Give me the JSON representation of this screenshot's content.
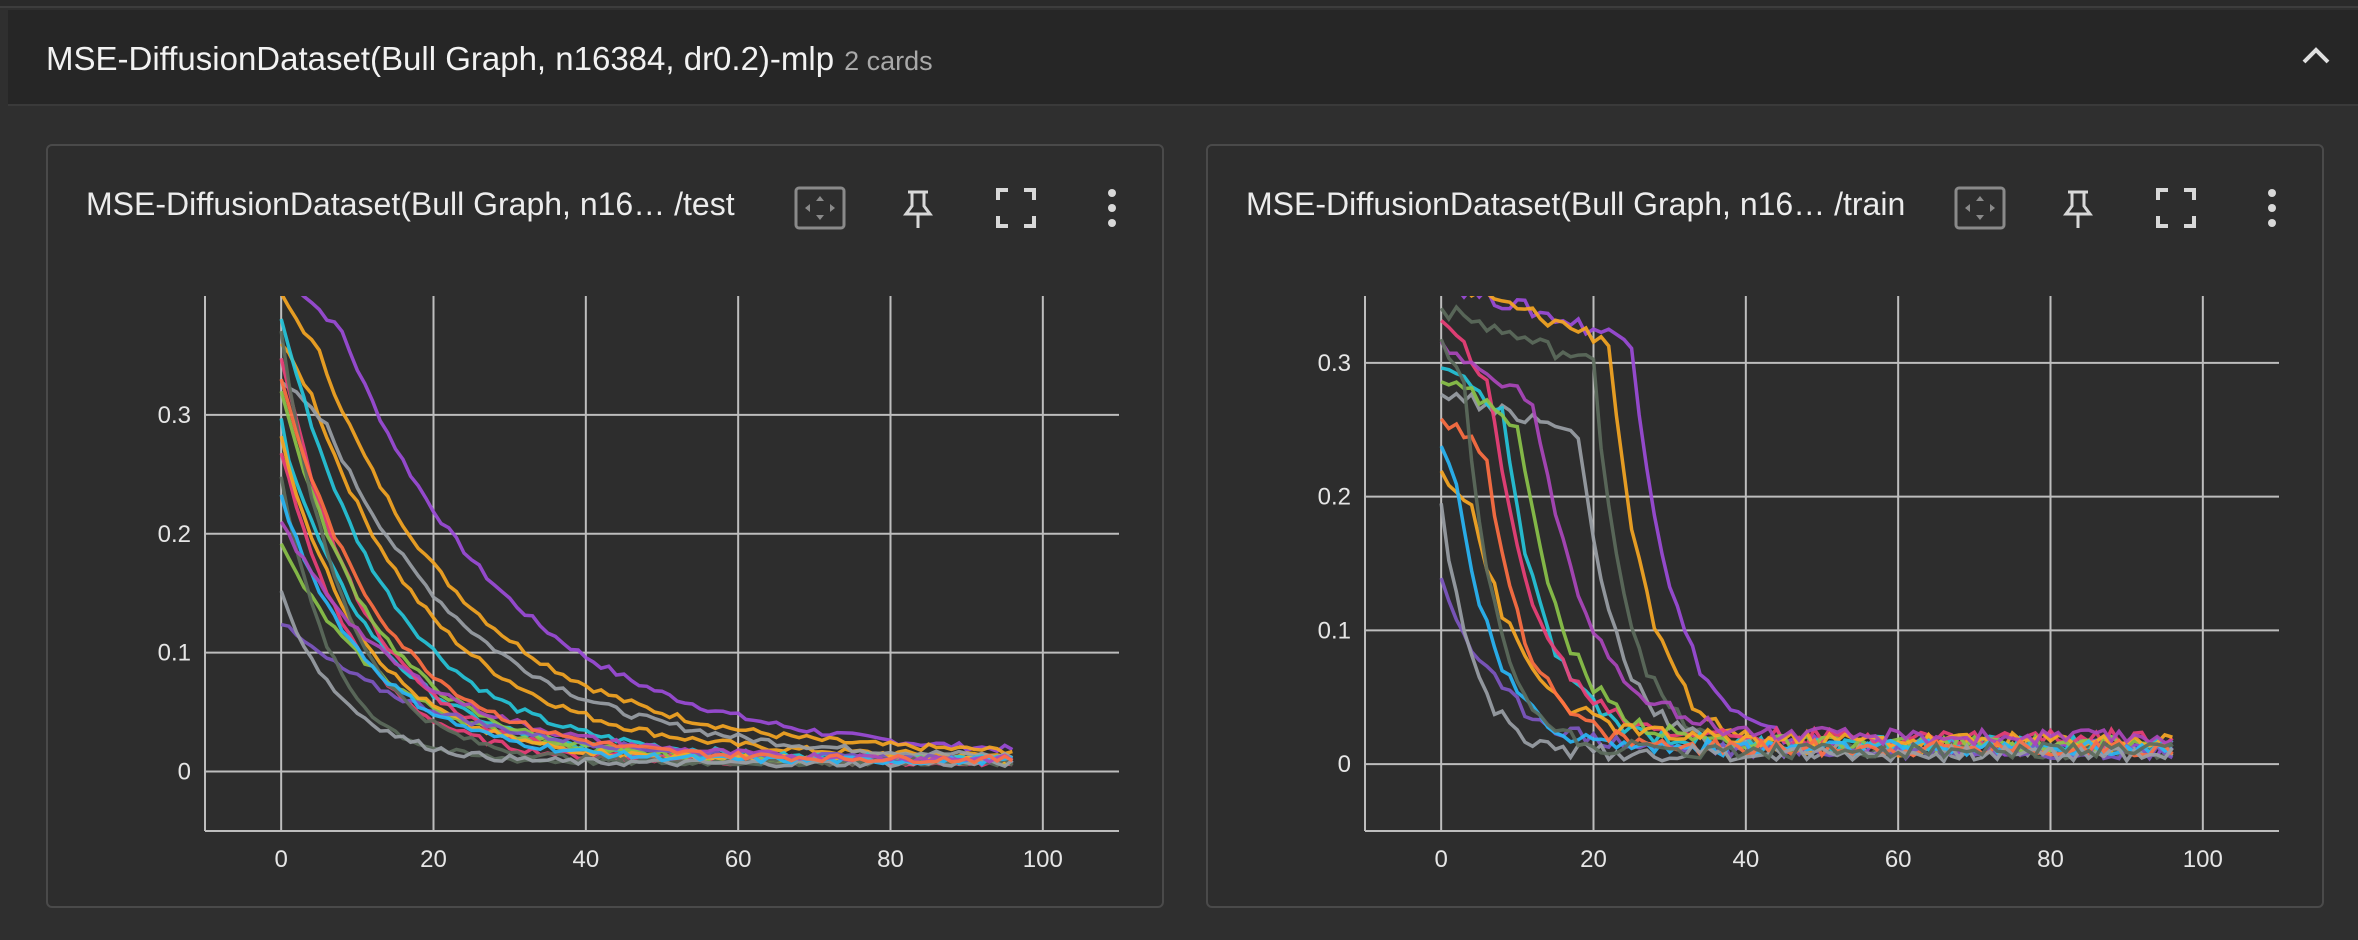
{
  "group": {
    "title": "MSE-DiffusionDataset(Bull Graph, n16384, dr0.2)-mlp",
    "count": "2 cards"
  },
  "cards": [
    {
      "title": "MSE-DiffusionDataset(Bull Graph, n16…  /test",
      "icons": [
        "fit-domain-icon",
        "pin-icon",
        "fullscreen-icon",
        "more-vert-icon"
      ]
    },
    {
      "title": "MSE-DiffusionDataset(Bull Graph, n16… /train",
      "icons": [
        "fit-domain-icon",
        "pin-icon",
        "fullscreen-icon",
        "more-vert-icon"
      ]
    }
  ],
  "chart_data": [
    {
      "type": "line",
      "split": "test",
      "xlim": [
        -10,
        110
      ],
      "ylim": [
        -0.05,
        0.4
      ],
      "xticks": [
        0,
        20,
        40,
        60,
        80,
        100
      ],
      "yticks": [
        0,
        0.1,
        0.2,
        0.3
      ],
      "xtick_labels": [
        "0",
        "20",
        "40",
        "60",
        "80",
        "100"
      ],
      "ytick_labels": [
        "0",
        "0.1",
        "0.2",
        "0.3"
      ],
      "grid": true,
      "series": [
        {
          "color": "#9c4cd9",
          "start": 0.42,
          "k": 0.045,
          "delay": 8,
          "end": 0.012
        },
        {
          "color": "#f5a623",
          "start": 0.4,
          "k": 0.05,
          "delay": 5,
          "end": 0.014
        },
        {
          "color": "#f5a623",
          "start": 0.36,
          "k": 0.06,
          "delay": 4,
          "end": 0.012
        },
        {
          "color": "#9aa0a6",
          "start": 0.33,
          "k": 0.05,
          "delay": 6,
          "end": 0.01
        },
        {
          "color": "#26c6da",
          "start": 0.38,
          "k": 0.07,
          "delay": 2,
          "end": 0.01
        },
        {
          "color": "#26c6da",
          "start": 0.3,
          "k": 0.08,
          "delay": 1,
          "end": 0.01
        },
        {
          "color": "#ec407a",
          "start": 0.35,
          "k": 0.09,
          "delay": 0,
          "end": 0.008
        },
        {
          "color": "#ec407a",
          "start": 0.27,
          "k": 0.1,
          "delay": 0,
          "end": 0.008
        },
        {
          "color": "#8bc34a",
          "start": 0.32,
          "k": 0.08,
          "delay": 0,
          "end": 0.009
        },
        {
          "color": "#8bc34a",
          "start": 0.19,
          "k": 0.07,
          "delay": 0,
          "end": 0.009
        },
        {
          "color": "#f9a825",
          "start": 0.28,
          "k": 0.09,
          "delay": 0,
          "end": 0.01
        },
        {
          "color": "#7e57c2",
          "start": 0.125,
          "k": 0.05,
          "delay": 0,
          "end": 0.009
        },
        {
          "color": "#5c6b5c",
          "start": 0.37,
          "k": 0.12,
          "delay": 0,
          "end": 0.008
        },
        {
          "color": "#5c6b5c",
          "start": 0.25,
          "k": 0.15,
          "delay": 0,
          "end": 0.008
        },
        {
          "color": "#9aa0a6",
          "start": 0.15,
          "k": 0.12,
          "delay": 0,
          "end": 0.007
        },
        {
          "color": "#29b6f6",
          "start": 0.23,
          "k": 0.085,
          "delay": 0,
          "end": 0.009
        },
        {
          "color": "#ab47bc",
          "start": 0.21,
          "k": 0.06,
          "delay": 0,
          "end": 0.01
        },
        {
          "color": "#ff7043",
          "start": 0.33,
          "k": 0.075,
          "delay": 0,
          "end": 0.01
        }
      ]
    },
    {
      "type": "line",
      "split": "train",
      "xlim": [
        -10,
        110
      ],
      "ylim": [
        -0.05,
        0.35
      ],
      "xticks": [
        0,
        20,
        40,
        60,
        80,
        100
      ],
      "yticks": [
        0,
        0.1,
        0.2,
        0.3
      ],
      "xtick_labels": [
        "0",
        "20",
        "40",
        "60",
        "80",
        "100"
      ],
      "ytick_labels": [
        "0",
        "0.1",
        "0.2",
        "0.3"
      ],
      "grid": true,
      "series": [
        {
          "color": "#9c4cd9",
          "start": 0.36,
          "k": 0.18,
          "delay": 25,
          "end": 0.012
        },
        {
          "color": "#f5a623",
          "start": 0.36,
          "k": 0.2,
          "delay": 22,
          "end": 0.012
        },
        {
          "color": "#5c6b5c",
          "start": 0.34,
          "k": 0.22,
          "delay": 20,
          "end": 0.01
        },
        {
          "color": "#9aa0a6",
          "start": 0.28,
          "k": 0.2,
          "delay": 18,
          "end": 0.01
        },
        {
          "color": "#26c6da",
          "start": 0.3,
          "k": 0.18,
          "delay": 8,
          "end": 0.015
        },
        {
          "color": "#ec407a",
          "start": 0.33,
          "k": 0.16,
          "delay": 6,
          "end": 0.02
        },
        {
          "color": "#8bc34a",
          "start": 0.29,
          "k": 0.17,
          "delay": 10,
          "end": 0.015
        },
        {
          "color": "#f9a825",
          "start": 0.22,
          "k": 0.15,
          "delay": 4,
          "end": 0.018
        },
        {
          "color": "#7e57c2",
          "start": 0.14,
          "k": 0.13,
          "delay": 0,
          "end": 0.01
        },
        {
          "color": "#29b6f6",
          "start": 0.24,
          "k": 0.2,
          "delay": 2,
          "end": 0.012
        },
        {
          "color": "#ab47bc",
          "start": 0.31,
          "k": 0.14,
          "delay": 12,
          "end": 0.02
        },
        {
          "color": "#ff7043",
          "start": 0.26,
          "k": 0.19,
          "delay": 6,
          "end": 0.012
        },
        {
          "color": "#9aa0a6",
          "start": 0.2,
          "k": 0.25,
          "delay": 0,
          "end": 0.008
        },
        {
          "color": "#5c6b5c",
          "start": 0.32,
          "k": 0.23,
          "delay": 3,
          "end": 0.01
        }
      ]
    }
  ]
}
